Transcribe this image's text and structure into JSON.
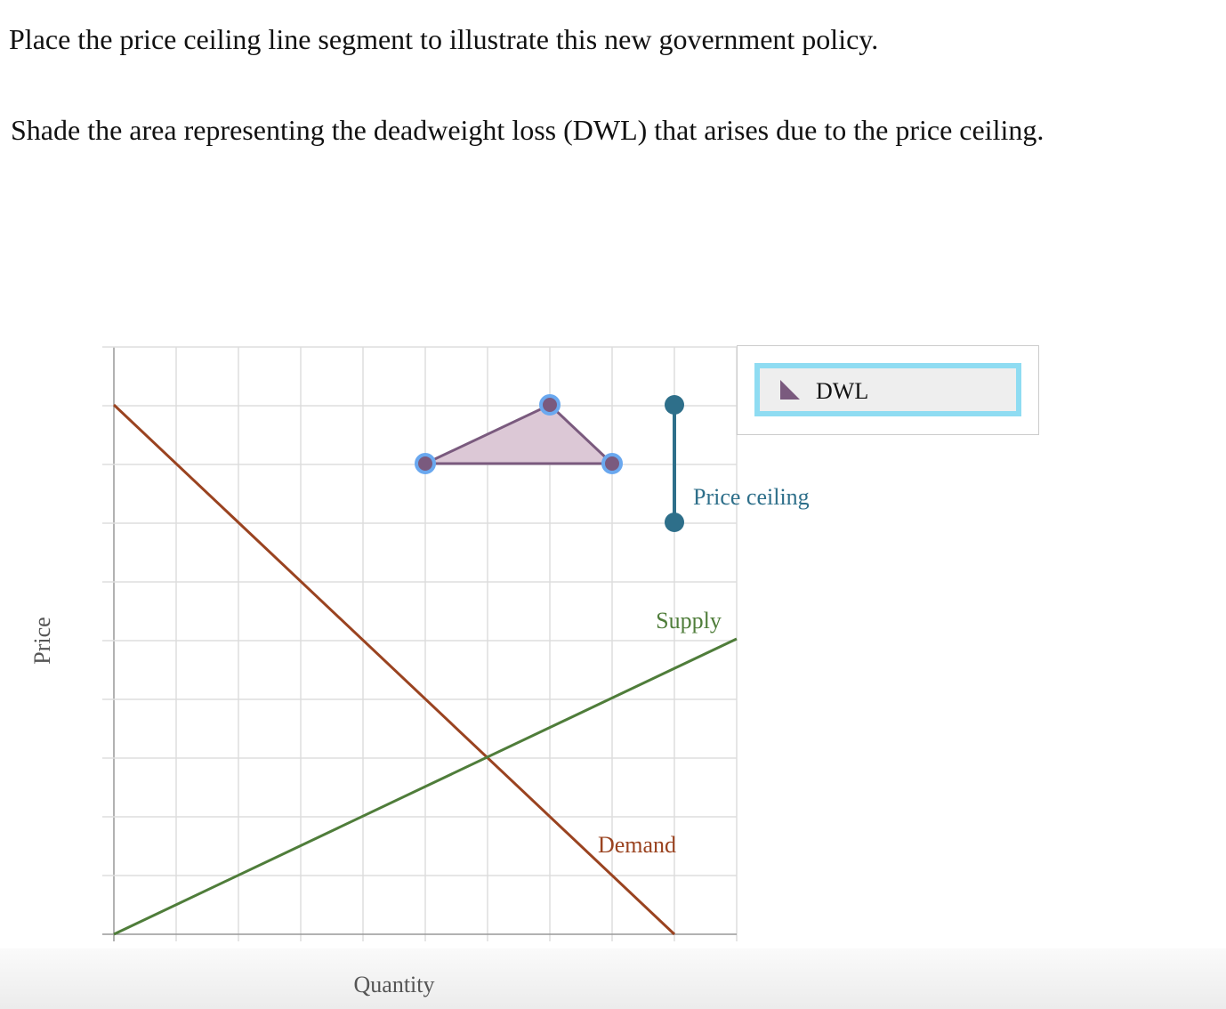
{
  "instructions": [
    "Place the price ceiling line segment to illustrate this new government policy.",
    "Shade the area representing the deadweight loss (DWL) that arises due to the price ceiling."
  ],
  "graph": {
    "y_axis_label": "Price",
    "x_axis_label": "Quantity",
    "curves": {
      "demand": "Demand",
      "supply": "Supply",
      "price_ceiling": "Price ceiling"
    }
  },
  "toolbox": {
    "tool": "DWL"
  }
}
